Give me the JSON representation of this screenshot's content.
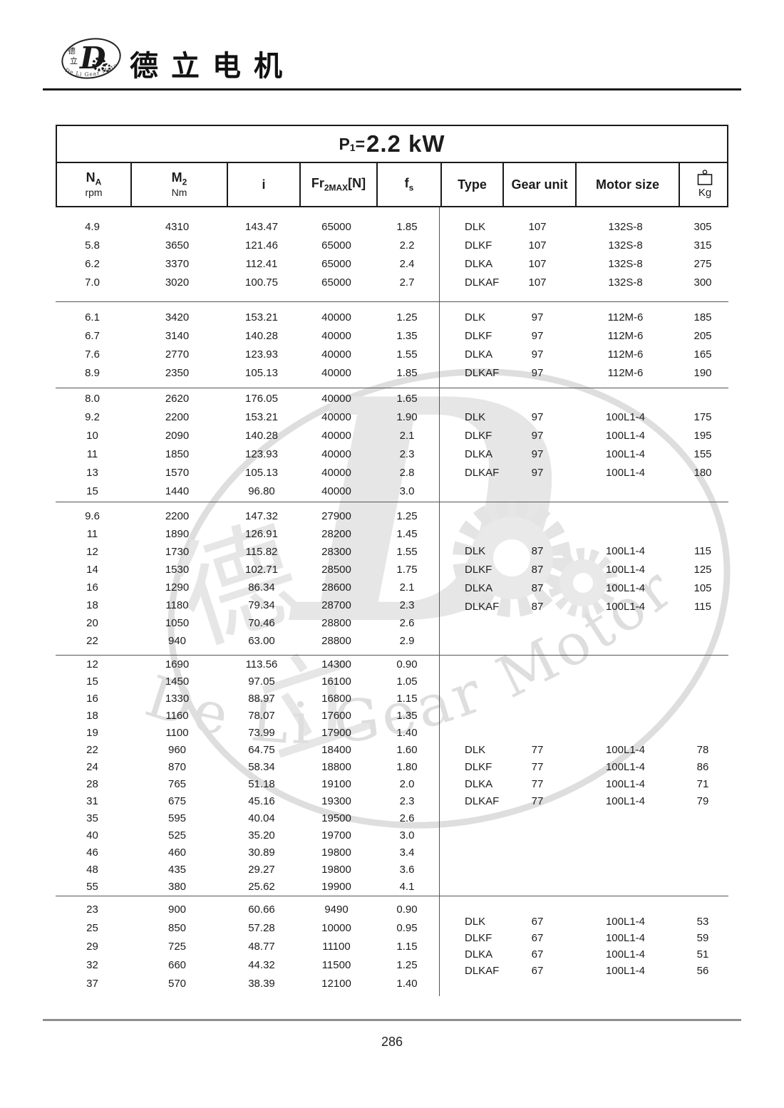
{
  "header": {
    "company_name": "德立电机",
    "logo_char1": "德",
    "logo_char2": "立",
    "logo_letter": "D",
    "logo_arc_text": "De Li Gear Motor"
  },
  "watermark": {
    "letter": "D",
    "char1": "德",
    "char2": "立",
    "text": "De  Li  Gear  Motor"
  },
  "colors": {
    "text": "#1c1c1c",
    "table_border": "#1a1a1a",
    "separator_line": "#555555",
    "footer_rule": "#8f8f8f",
    "watermark_gray": "#e2e2e2"
  },
  "table": {
    "title": {
      "p": "P",
      "sub": "1",
      "eq": "=",
      "value": "2.2 kW"
    },
    "columns": {
      "na": {
        "main": "N",
        "sub": "A",
        "unit": "rpm"
      },
      "m2": {
        "main": "M",
        "sub": "2",
        "unit": "Nm"
      },
      "i": {
        "main": "i"
      },
      "fr": {
        "main": "Fr",
        "sub": "2MAX",
        "bracket": "[N]"
      },
      "fs": {
        "main": "f",
        "sub": "s"
      },
      "type": {
        "main": "Type"
      },
      "gear": {
        "main": "Gear unit"
      },
      "motor": {
        "main": "Motor size"
      },
      "kg": {
        "unit": "Kg"
      }
    },
    "blocks": [
      {
        "rows": [
          {
            "na": "4.9",
            "m2": "4310",
            "i": "143.47",
            "fr": "65000",
            "fs": "1.85"
          },
          {
            "na": "5.8",
            "m2": "3650",
            "i": "121.46",
            "fr": "65000",
            "fs": "2.2"
          },
          {
            "na": "6.2",
            "m2": "3370",
            "i": "112.41",
            "fr": "65000",
            "fs": "2.4"
          },
          {
            "na": "7.0",
            "m2": "3020",
            "i": "100.75",
            "fr": "65000",
            "fs": "2.7"
          }
        ],
        "group": [
          {
            "type": "DLK",
            "gear": "107",
            "motor": "132S-8",
            "kg": "305"
          },
          {
            "type": "DLKF",
            "gear": "107",
            "motor": "132S-8",
            "kg": "315"
          },
          {
            "type": "DLKA",
            "gear": "107",
            "motor": "132S-8",
            "kg": "275"
          },
          {
            "type": "DLKAF",
            "gear": "107",
            "motor": "132S-8",
            "kg": "300"
          }
        ]
      },
      {
        "rows": [
          {
            "na": "6.1",
            "m2": "3420",
            "i": "153.21",
            "fr": "40000",
            "fs": "1.25"
          },
          {
            "na": "6.7",
            "m2": "3140",
            "i": "140.28",
            "fr": "40000",
            "fs": "1.35"
          },
          {
            "na": "7.6",
            "m2": "2770",
            "i": "123.93",
            "fr": "40000",
            "fs": "1.55"
          },
          {
            "na": "8.9",
            "m2": "2350",
            "i": "105.13",
            "fr": "40000",
            "fs": "1.85"
          }
        ],
        "group": [
          {
            "type": "DLK",
            "gear": "97",
            "motor": "112M-6",
            "kg": "185"
          },
          {
            "type": "DLKF",
            "gear": "97",
            "motor": "112M-6",
            "kg": "205"
          },
          {
            "type": "DLKA",
            "gear": "97",
            "motor": "112M-6",
            "kg": "165"
          },
          {
            "type": "DLKAF",
            "gear": "97",
            "motor": "112M-6",
            "kg": "190"
          }
        ]
      },
      {
        "rows": [
          {
            "na": "8.0",
            "m2": "2620",
            "i": "176.05",
            "fr": "40000",
            "fs": "1.65"
          },
          {
            "na": "9.2",
            "m2": "2200",
            "i": "153.21",
            "fr": "40000",
            "fs": "1.90"
          },
          {
            "na": "10",
            "m2": "2090",
            "i": "140.28",
            "fr": "40000",
            "fs": "2.1"
          },
          {
            "na": "11",
            "m2": "1850",
            "i": "123.93",
            "fr": "40000",
            "fs": "2.3"
          },
          {
            "na": "13",
            "m2": "1570",
            "i": "105.13",
            "fr": "40000",
            "fs": "2.8"
          },
          {
            "na": "15",
            "m2": "1440",
            "i": "96.80",
            "fr": "40000",
            "fs": "3.0"
          }
        ],
        "group": [
          {
            "type": "DLK",
            "gear": "97",
            "motor": "100L1-4",
            "kg": "175"
          },
          {
            "type": "DLKF",
            "gear": "97",
            "motor": "100L1-4",
            "kg": "195"
          },
          {
            "type": "DLKA",
            "gear": "97",
            "motor": "100L1-4",
            "kg": "155"
          },
          {
            "type": "DLKAF",
            "gear": "97",
            "motor": "100L1-4",
            "kg": "180"
          }
        ]
      },
      {
        "rows": [
          {
            "na": "9.6",
            "m2": "2200",
            "i": "147.32",
            "fr": "27900",
            "fs": "1.25"
          },
          {
            "na": "11",
            "m2": "1890",
            "i": "126.91",
            "fr": "28200",
            "fs": "1.45"
          },
          {
            "na": "12",
            "m2": "1730",
            "i": "115.82",
            "fr": "28300",
            "fs": "1.55"
          },
          {
            "na": "14",
            "m2": "1530",
            "i": "102.71",
            "fr": "28500",
            "fs": "1.75"
          },
          {
            "na": "16",
            "m2": "1290",
            "i": "86.34",
            "fr": "28600",
            "fs": "2.1"
          },
          {
            "na": "18",
            "m2": "1180",
            "i": "79.34",
            "fr": "28700",
            "fs": "2.3"
          },
          {
            "na": "20",
            "m2": "1050",
            "i": "70.46",
            "fr": "28800",
            "fs": "2.6"
          },
          {
            "na": "22",
            "m2": "940",
            "i": "63.00",
            "fr": "28800",
            "fs": "2.9"
          }
        ],
        "group": [
          {
            "type": "DLK",
            "gear": "87",
            "motor": "100L1-4",
            "kg": "115"
          },
          {
            "type": "DLKF",
            "gear": "87",
            "motor": "100L1-4",
            "kg": "125"
          },
          {
            "type": "DLKA",
            "gear": "87",
            "motor": "100L1-4",
            "kg": "105"
          },
          {
            "type": "DLKAF",
            "gear": "87",
            "motor": "100L1-4",
            "kg": "115"
          }
        ]
      },
      {
        "rows": [
          {
            "na": "12",
            "m2": "1690",
            "i": "113.56",
            "fr": "14300",
            "fs": "0.90"
          },
          {
            "na": "15",
            "m2": "1450",
            "i": "97.05",
            "fr": "16100",
            "fs": "1.05"
          },
          {
            "na": "16",
            "m2": "1330",
            "i": "88.97",
            "fr": "16800",
            "fs": "1.15"
          },
          {
            "na": "18",
            "m2": "1160",
            "i": "78.07",
            "fr": "17600",
            "fs": "1.35"
          },
          {
            "na": "19",
            "m2": "1100",
            "i": "73.99",
            "fr": "17900",
            "fs": "1.40"
          },
          {
            "na": "22",
            "m2": "960",
            "i": "64.75",
            "fr": "18400",
            "fs": "1.60"
          },
          {
            "na": "24",
            "m2": "870",
            "i": "58.34",
            "fr": "18800",
            "fs": "1.80"
          },
          {
            "na": "28",
            "m2": "765",
            "i": "51.18",
            "fr": "19100",
            "fs": "2.0"
          },
          {
            "na": "31",
            "m2": "675",
            "i": "45.16",
            "fr": "19300",
            "fs": "2.3"
          },
          {
            "na": "35",
            "m2": "595",
            "i": "40.04",
            "fr": "19500",
            "fs": "2.6"
          },
          {
            "na": "40",
            "m2": "525",
            "i": "35.20",
            "fr": "19700",
            "fs": "3.0"
          },
          {
            "na": "46",
            "m2": "460",
            "i": "30.89",
            "fr": "19800",
            "fs": "3.4"
          },
          {
            "na": "48",
            "m2": "435",
            "i": "29.27",
            "fr": "19800",
            "fs": "3.6"
          },
          {
            "na": "55",
            "m2": "380",
            "i": "25.62",
            "fr": "19900",
            "fs": "4.1"
          }
        ],
        "group": [
          {
            "type": "DLK",
            "gear": "77",
            "motor": "100L1-4",
            "kg": "78"
          },
          {
            "type": "DLKF",
            "gear": "77",
            "motor": "100L1-4",
            "kg": "86"
          },
          {
            "type": "DLKA",
            "gear": "77",
            "motor": "100L1-4",
            "kg": "71"
          },
          {
            "type": "DLKAF",
            "gear": "77",
            "motor": "100L1-4",
            "kg": "79"
          }
        ]
      },
      {
        "rows": [
          {
            "na": "23",
            "m2": "900",
            "i": "60.66",
            "fr": "9490",
            "fs": "0.90"
          },
          {
            "na": "25",
            "m2": "850",
            "i": "57.28",
            "fr": "10000",
            "fs": "0.95"
          },
          {
            "na": "29",
            "m2": "725",
            "i": "48.77",
            "fr": "11100",
            "fs": "1.15"
          },
          {
            "na": "32",
            "m2": "660",
            "i": "44.32",
            "fr": "11500",
            "fs": "1.25"
          },
          {
            "na": "37",
            "m2": "570",
            "i": "38.39",
            "fr": "12100",
            "fs": "1.40"
          }
        ],
        "group": [
          {
            "type": "DLK",
            "gear": "67",
            "motor": "100L1-4",
            "kg": "53"
          },
          {
            "type": "DLKF",
            "gear": "67",
            "motor": "100L1-4",
            "kg": "59"
          },
          {
            "type": "DLKA",
            "gear": "67",
            "motor": "100L1-4",
            "kg": "51"
          },
          {
            "type": "DLKAF",
            "gear": "67",
            "motor": "100L1-4",
            "kg": "56"
          }
        ]
      }
    ]
  },
  "page": {
    "number": "286"
  }
}
